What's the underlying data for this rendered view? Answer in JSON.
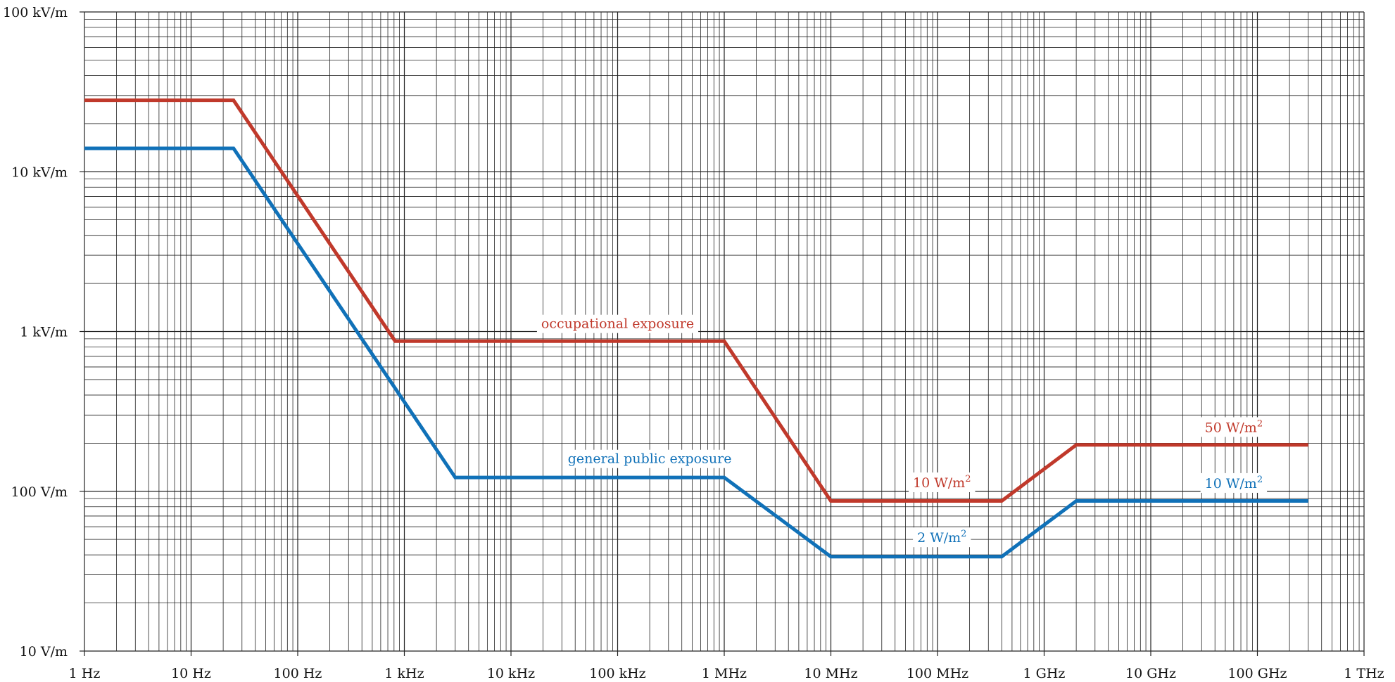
{
  "chart_data": {
    "type": "line",
    "title": "",
    "xlabel": "",
    "ylabel": "",
    "x_scale": "log",
    "y_scale": "log",
    "xlim": [
      1,
      1000000000000
    ],
    "ylim": [
      10,
      100000
    ],
    "grid": true,
    "x_tick_values": [
      1,
      10,
      100,
      1000,
      10000,
      100000,
      1000000,
      10000000,
      100000000,
      1000000000,
      10000000000,
      100000000000,
      1000000000000
    ],
    "x_tick_labels": [
      "1 Hz",
      "10 Hz",
      "100 Hz",
      "1 kHz",
      "10 kHz",
      "100 kHz",
      "1 MHz",
      "10 MHz",
      "100 MHz",
      "1 GHz",
      "10 GHz",
      "100 GHz",
      "1 THz"
    ],
    "y_tick_values": [
      10,
      100,
      1000,
      10000,
      100000
    ],
    "y_tick_labels": [
      "10 V/m",
      "100 V/m",
      "1 kV/m",
      "10 kV/m",
      "100 kV/m"
    ],
    "series": [
      {
        "name": "occupational exposure",
        "color": "#c0392b",
        "x": [
          1,
          25,
          820,
          1000000,
          10000000,
          400000000,
          2000000000,
          300000000000
        ],
        "y": [
          28000,
          28000,
          870,
          870,
          87,
          87,
          195,
          195
        ]
      },
      {
        "name": "general public exposure",
        "color": "#1071b8",
        "x": [
          1,
          25,
          3000,
          1000000,
          10000000,
          400000000,
          2000000000,
          300000000000
        ],
        "y": [
          14000,
          14000,
          122,
          122,
          39,
          39,
          87,
          87
        ]
      }
    ],
    "annotations": [
      {
        "id": "occ",
        "series": 0,
        "text": "occupational exposure",
        "sup": "",
        "x": 100000,
        "y": 1050
      },
      {
        "id": "occ10",
        "series": 0,
        "text": "10 W/m",
        "sup": "2",
        "x": 110000000,
        "y": 106
      },
      {
        "id": "occ50",
        "series": 0,
        "text": "50 W/m",
        "sup": "2",
        "x": 60000000000,
        "y": 235
      },
      {
        "id": "pub",
        "series": 1,
        "text": "general public exposure",
        "sup": "",
        "x": 200000,
        "y": 150
      },
      {
        "id": "pub2",
        "series": 1,
        "text": "2 W/m",
        "sup": "2",
        "x": 110000000,
        "y": 48
      },
      {
        "id": "pub10",
        "series": 1,
        "text": "10 W/m",
        "sup": "2",
        "x": 60000000000,
        "y": 105
      }
    ]
  }
}
